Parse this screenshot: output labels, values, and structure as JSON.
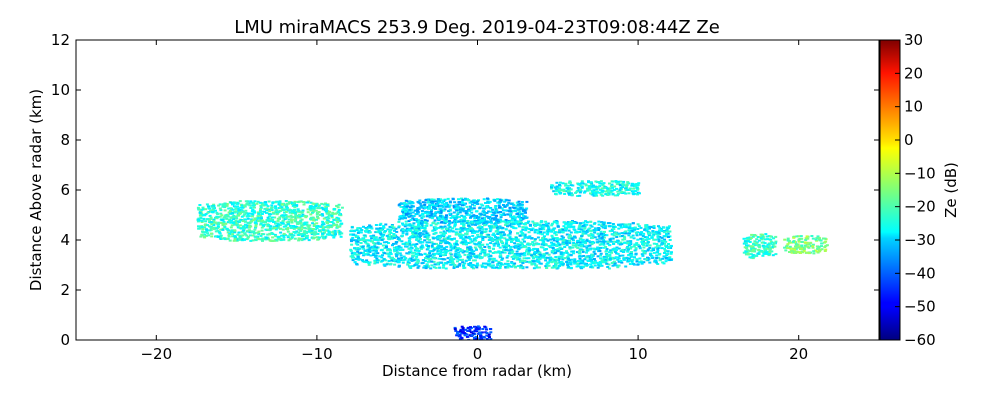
{
  "chart_data": {
    "type": "heatmap",
    "title": "LMU miraMACS 253.9 Deg. 2019-04-23T09:08:44Z  Ze",
    "xlabel": "Distance from radar (km)",
    "ylabel": "Distance Above radar  (km)",
    "xlim": [
      -25,
      25
    ],
    "ylim": [
      0,
      12
    ],
    "xticks": [
      -20,
      -10,
      0,
      10,
      20
    ],
    "xtick_labels": [
      "−20",
      "−10",
      "0",
      "10",
      "20"
    ],
    "yticks": [
      0,
      2,
      4,
      6,
      8,
      10,
      12
    ],
    "ytick_labels": [
      "0",
      "2",
      "4",
      "6",
      "8",
      "10",
      "12"
    ],
    "grid": false,
    "colorbar": {
      "label": "Ze (dB)",
      "colormap": "jet",
      "range": [
        -60,
        30
      ],
      "ticks": [
        30,
        20,
        10,
        0,
        -10,
        -20,
        -30,
        -40,
        -50,
        -60
      ],
      "tick_labels": [
        "30",
        "20",
        "10",
        "0",
        "−10",
        "−20",
        "−30",
        "−40",
        "−50",
        "−60"
      ]
    },
    "echo_regions": [
      {
        "name": "upper-left layer",
        "x_range": [
          -17.5,
          -8.5
        ],
        "y_range": [
          4.0,
          5.6
        ],
        "ze_dB": -22
      },
      {
        "name": "upper-mid layer",
        "x_range": [
          -5.0,
          3.0
        ],
        "y_range": [
          4.7,
          5.7
        ],
        "ze_dB": -30
      },
      {
        "name": "top-right layer",
        "x_range": [
          4.5,
          10.0
        ],
        "y_range": [
          5.8,
          6.4
        ],
        "ze_dB": -25
      },
      {
        "name": "main layer",
        "x_range": [
          -8.0,
          12.0
        ],
        "y_range": [
          2.9,
          4.8
        ],
        "ze_dB": -27
      },
      {
        "name": "far-right small",
        "x_range": [
          16.5,
          18.5
        ],
        "y_range": [
          3.3,
          4.3
        ],
        "ze_dB": -22
      },
      {
        "name": "far-right streak",
        "x_range": [
          19.0,
          21.7
        ],
        "y_range": [
          3.5,
          4.2
        ],
        "ze_dB": -15
      },
      {
        "name": "near-ground clutter",
        "x_range": [
          -1.5,
          0.8
        ],
        "y_range": [
          0.0,
          0.6
        ],
        "ze_dB": -45
      }
    ]
  }
}
